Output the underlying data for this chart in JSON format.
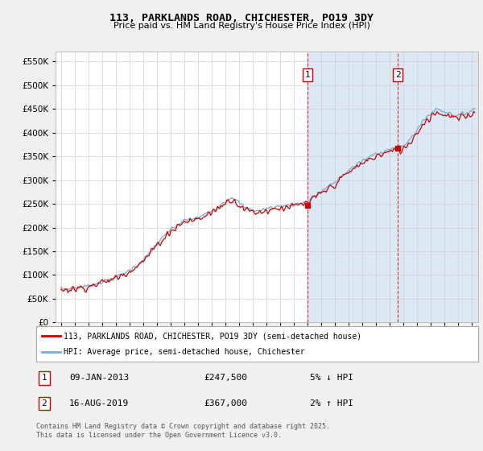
{
  "title": "113, PARKLANDS ROAD, CHICHESTER, PO19 3DY",
  "subtitle": "Price paid vs. HM Land Registry's House Price Index (HPI)",
  "ylim": [
    0,
    570000
  ],
  "yticks": [
    0,
    50000,
    100000,
    150000,
    200000,
    250000,
    300000,
    350000,
    400000,
    450000,
    500000,
    550000
  ],
  "xlim_start": 1994.6,
  "xlim_end": 2025.5,
  "hpi_color": "#7bafd4",
  "price_color": "#cc0000",
  "transaction1_date": 2013.03,
  "transaction1_price": 247500,
  "transaction2_date": 2019.62,
  "transaction2_price": 367000,
  "legend_property": "113, PARKLANDS ROAD, CHICHESTER, PO19 3DY (semi-detached house)",
  "legend_hpi": "HPI: Average price, semi-detached house, Chichester",
  "footnote": "Contains HM Land Registry data © Crown copyright and database right 2025.\nThis data is licensed under the Open Government Licence v3.0.",
  "table_row1": [
    "1",
    "09-JAN-2013",
    "£247,500",
    "5% ↓ HPI"
  ],
  "table_row2": [
    "2",
    "16-AUG-2019",
    "£367,000",
    "2% ↑ HPI"
  ],
  "background_color": "#f0f0f0",
  "plot_bg_color": "#ffffff",
  "shaded_color": "#dce9f5"
}
